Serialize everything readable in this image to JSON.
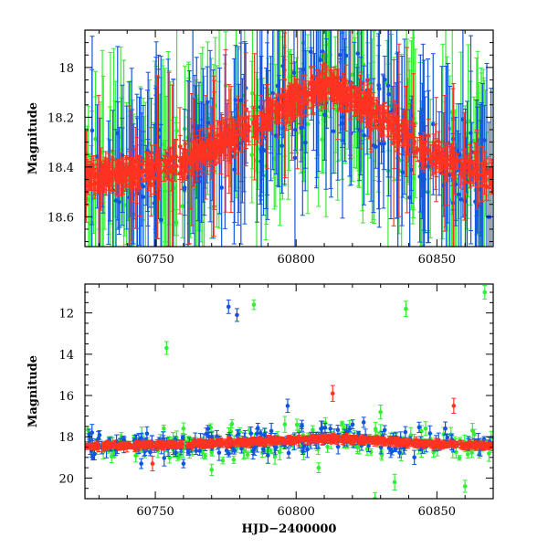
{
  "colors": {
    "green": "#33ee33",
    "blue": "#1155dd",
    "red": "#ff3322",
    "frame": "#000000"
  },
  "chart_data": [
    {
      "type": "scatter",
      "panel": "top",
      "title": "",
      "xlabel": "",
      "ylabel": "Magnitude",
      "xlim": [
        60725,
        60870
      ],
      "ylim": [
        18.72,
        17.85
      ],
      "y_inverted": true,
      "xticks": [
        60750,
        60800,
        60850
      ],
      "yticks": [
        18,
        18.2,
        18.4,
        18.6
      ],
      "ytick_labels": [
        "18",
        "18.2",
        "18.4",
        "18.6"
      ],
      "error_bars": true,
      "grid": false,
      "series": [
        {
          "color": "green",
          "trend": [
            [
              60725,
              18.45
            ],
            [
              60760,
              18.38
            ],
            [
              60790,
              18.2
            ],
            [
              60812,
              18.06
            ],
            [
              60830,
              18.2
            ],
            [
              60850,
              18.36
            ],
            [
              60868,
              18.43
            ]
          ]
        },
        {
          "color": "blue",
          "trend": [
            [
              60725,
              18.45
            ],
            [
              60760,
              18.38
            ],
            [
              60790,
              18.2
            ],
            [
              60812,
              18.06
            ],
            [
              60830,
              18.2
            ],
            [
              60850,
              18.36
            ],
            [
              60868,
              18.43
            ]
          ]
        },
        {
          "color": "red",
          "trend": [
            [
              60725,
              18.45
            ],
            [
              60760,
              18.38
            ],
            [
              60790,
              18.2
            ],
            [
              60812,
              18.06
            ],
            [
              60830,
              18.2
            ],
            [
              60850,
              18.36
            ],
            [
              60868,
              18.43
            ]
          ]
        }
      ]
    },
    {
      "type": "scatter",
      "panel": "bottom",
      "title": "",
      "xlabel": "HJD−2400000",
      "ylabel": "Magnitude",
      "xlim": [
        60725,
        60870
      ],
      "ylim": [
        21,
        10.6
      ],
      "y_inverted": true,
      "xticks": [
        60750,
        60800,
        60850
      ],
      "yticks": [
        12,
        14,
        16,
        18,
        20
      ],
      "ytick_labels": [
        "12",
        "14",
        "16",
        "18",
        "20"
      ],
      "error_bars": true,
      "grid": false,
      "series": [
        {
          "color": "green",
          "outliers": [
            [
              60754,
              13.7
            ],
            [
              60785,
              11.6
            ],
            [
              60839,
              11.8
            ],
            [
              60867,
              11.0
            ],
            [
              60830,
              16.8
            ],
            [
              60760,
              17.6
            ],
            [
              60796,
              17.4
            ],
            [
              60846,
              17.6
            ],
            [
              60855,
              17.9
            ],
            [
              60770,
              19.6
            ],
            [
              60808,
              19.5
            ],
            [
              60835,
              20.2
            ],
            [
              60860,
              20.4
            ],
            [
              60828,
              21.0
            ]
          ]
        },
        {
          "color": "blue",
          "outliers": [
            [
              60776,
              11.7
            ],
            [
              60779,
              12.1
            ],
            [
              60797,
              16.5
            ],
            [
              60824,
              17.3
            ],
            [
              60818,
              17.8
            ],
            [
              60853,
              17.6
            ],
            [
              60745,
              19.3
            ],
            [
              60760,
              19.3
            ],
            [
              60790,
              18.9
            ],
            [
              60842,
              19.0
            ]
          ]
        },
        {
          "color": "red",
          "outliers": [
            [
              60813,
              15.9
            ],
            [
              60856,
              16.5
            ],
            [
              60749,
              19.3
            ]
          ]
        }
      ]
    }
  ],
  "ytitle_top": "Magnitude",
  "ytitle_bottom": "Magnitude",
  "xtitle_bottom": "HJD−2400000"
}
